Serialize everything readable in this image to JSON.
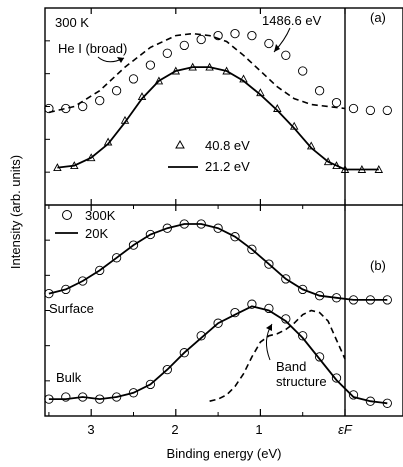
{
  "chart_data": [
    {
      "panel": "(a)",
      "type": "scatter",
      "ylabel": "Intensity (arb. units)",
      "xlabel": "Binding energy (eV)",
      "xlim": [
        3.5,
        -0.65
      ],
      "x_ticks": [
        3,
        2,
        1,
        0
      ],
      "x_tick_labels": [
        "3",
        "2",
        "1",
        "εF"
      ],
      "grid": false,
      "annotations": {
        "panel_label": "(a)",
        "temperature": "300 K",
        "hxray_label": "1486.6 eV",
        "hei_label": "He I (broad)"
      },
      "legend": [
        {
          "marker": "triangle",
          "label": "40.8 eV"
        },
        {
          "marker": "line",
          "label": "21.2 eV"
        }
      ],
      "series": [
        {
          "name": "1486.6 eV",
          "marker": "open-circle",
          "x": [
            3.5,
            3.3,
            3.1,
            2.9,
            2.7,
            2.5,
            2.3,
            2.1,
            1.9,
            1.7,
            1.5,
            1.3,
            1.1,
            0.9,
            0.7,
            0.5,
            0.3,
            0.1,
            -0.1,
            -0.3,
            -0.5
          ],
          "y": [
            0.49,
            0.49,
            0.5,
            0.53,
            0.58,
            0.64,
            0.71,
            0.77,
            0.81,
            0.84,
            0.86,
            0.87,
            0.86,
            0.82,
            0.76,
            0.68,
            0.58,
            0.52,
            0.49,
            0.48,
            0.48
          ]
        },
        {
          "name": "He I (broad)",
          "style": "dashed",
          "x": [
            3.5,
            3.2,
            2.9,
            2.6,
            2.3,
            2.0,
            1.8,
            1.6,
            1.4,
            1.2,
            1.0,
            0.8,
            0.6,
            0.4,
            0.2,
            0.0
          ],
          "y": [
            0.47,
            0.5,
            0.58,
            0.7,
            0.8,
            0.86,
            0.87,
            0.86,
            0.83,
            0.76,
            0.68,
            0.6,
            0.54,
            0.51,
            0.5,
            0.49
          ]
        },
        {
          "name": "40.8 eV",
          "marker": "triangle",
          "x": [
            3.4,
            3.2,
            3.0,
            2.8,
            2.6,
            2.4,
            2.2,
            2.0,
            1.8,
            1.6,
            1.4,
            1.2,
            1.0,
            0.8,
            0.6,
            0.4,
            0.2,
            0.1,
            0.0,
            -0.2,
            -0.4
          ],
          "y": [
            0.19,
            0.2,
            0.24,
            0.32,
            0.43,
            0.55,
            0.63,
            0.68,
            0.7,
            0.7,
            0.68,
            0.64,
            0.57,
            0.49,
            0.4,
            0.3,
            0.22,
            0.2,
            0.18,
            0.18,
            0.18
          ]
        },
        {
          "name": "21.2 eV",
          "style": "solid",
          "x": [
            3.4,
            3.2,
            3.0,
            2.8,
            2.6,
            2.4,
            2.2,
            2.0,
            1.8,
            1.6,
            1.4,
            1.2,
            1.0,
            0.8,
            0.6,
            0.4,
            0.2,
            0.1,
            0.0,
            -0.2,
            -0.4
          ],
          "y": [
            0.19,
            0.2,
            0.24,
            0.31,
            0.42,
            0.54,
            0.63,
            0.68,
            0.7,
            0.7,
            0.68,
            0.63,
            0.56,
            0.48,
            0.39,
            0.29,
            0.22,
            0.2,
            0.18,
            0.18,
            0.18
          ]
        }
      ]
    },
    {
      "panel": "(b)",
      "type": "scatter",
      "ylabel": "Intensity (arb. units)",
      "xlabel": "Binding energy (eV)",
      "xlim": [
        3.5,
        -0.65
      ],
      "x_ticks": [
        3,
        2,
        1,
        0
      ],
      "x_tick_labels": [
        "3",
        "2",
        "1",
        "εF"
      ],
      "grid": false,
      "annotations": {
        "panel_label": "(b)",
        "surface_label": "Surface",
        "bulk_label": "Bulk",
        "band_label_1": "Band",
        "band_label_2": "structure"
      },
      "legend": [
        {
          "marker": "open-circle",
          "label": "300K"
        },
        {
          "marker": "line",
          "label": "20K"
        }
      ],
      "series": [
        {
          "name": "Surface 300K",
          "marker": "open-circle",
          "x": [
            3.5,
            3.3,
            3.1,
            2.9,
            2.7,
            2.5,
            2.3,
            2.1,
            1.9,
            1.7,
            1.5,
            1.3,
            1.1,
            0.9,
            0.7,
            0.5,
            0.3,
            0.1,
            -0.1,
            -0.3,
            -0.5
          ],
          "y": [
            0.58,
            0.6,
            0.64,
            0.69,
            0.75,
            0.81,
            0.86,
            0.89,
            0.91,
            0.91,
            0.89,
            0.85,
            0.79,
            0.72,
            0.65,
            0.6,
            0.57,
            0.56,
            0.55,
            0.55,
            0.55
          ]
        },
        {
          "name": "Surface 20K",
          "style": "solid",
          "x": [
            3.5,
            3.3,
            3.1,
            2.9,
            2.7,
            2.5,
            2.3,
            2.1,
            1.9,
            1.7,
            1.5,
            1.3,
            1.1,
            0.9,
            0.7,
            0.5,
            0.3,
            0.1,
            -0.1,
            -0.3,
            -0.5
          ],
          "y": [
            0.58,
            0.6,
            0.64,
            0.69,
            0.75,
            0.81,
            0.86,
            0.89,
            0.91,
            0.91,
            0.89,
            0.85,
            0.79,
            0.72,
            0.65,
            0.6,
            0.57,
            0.56,
            0.55,
            0.55,
            0.55
          ]
        },
        {
          "name": "Bulk 300K",
          "marker": "open-circle",
          "x": [
            3.5,
            3.3,
            3.1,
            2.9,
            2.7,
            2.5,
            2.3,
            2.1,
            1.9,
            1.7,
            1.5,
            1.3,
            1.1,
            0.9,
            0.7,
            0.5,
            0.3,
            0.1,
            -0.1,
            -0.3,
            -0.5
          ],
          "y": [
            0.08,
            0.09,
            0.09,
            0.08,
            0.09,
            0.11,
            0.15,
            0.22,
            0.3,
            0.38,
            0.44,
            0.49,
            0.53,
            0.51,
            0.46,
            0.38,
            0.28,
            0.18,
            0.1,
            0.07,
            0.06
          ]
        },
        {
          "name": "Bulk 20K",
          "style": "solid",
          "x": [
            3.5,
            3.3,
            3.1,
            2.9,
            2.7,
            2.5,
            2.3,
            2.1,
            1.9,
            1.7,
            1.5,
            1.3,
            1.1,
            0.9,
            0.7,
            0.5,
            0.3,
            0.1,
            -0.1,
            -0.3,
            -0.5
          ],
          "y": [
            0.08,
            0.08,
            0.09,
            0.08,
            0.09,
            0.11,
            0.15,
            0.22,
            0.3,
            0.37,
            0.44,
            0.48,
            0.52,
            0.5,
            0.45,
            0.37,
            0.27,
            0.17,
            0.09,
            0.07,
            0.06
          ]
        },
        {
          "name": "Band structure",
          "style": "dashed",
          "x": [
            1.6,
            1.5,
            1.4,
            1.3,
            1.2,
            1.1,
            1.0,
            0.9,
            0.8,
            0.7,
            0.6,
            0.5,
            0.4,
            0.3,
            0.2,
            0.1,
            0.0
          ],
          "y": [
            0.07,
            0.08,
            0.1,
            0.14,
            0.2,
            0.28,
            0.35,
            0.38,
            0.39,
            0.41,
            0.44,
            0.48,
            0.5,
            0.49,
            0.45,
            0.36,
            0.27
          ]
        }
      ]
    }
  ]
}
